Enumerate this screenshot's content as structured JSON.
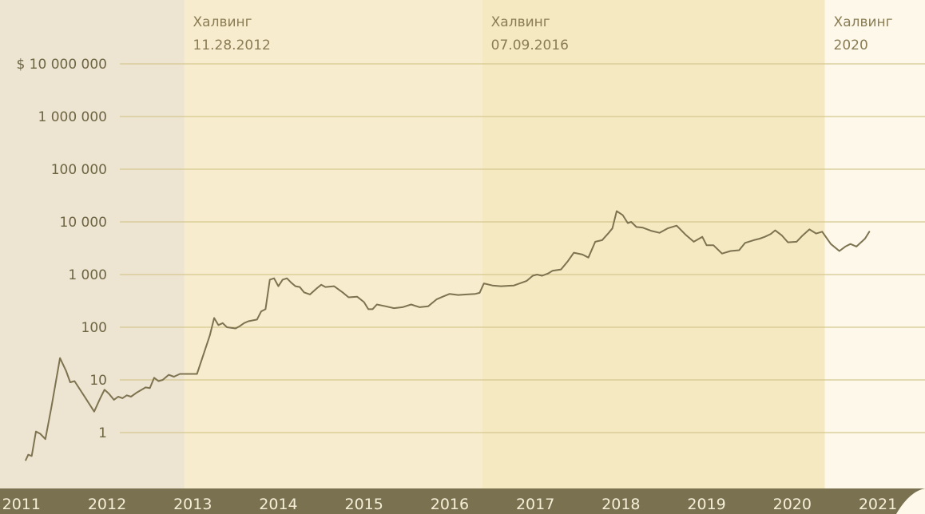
{
  "chart_data": {
    "type": "line",
    "y_scale": "log",
    "ylim": [
      0.2,
      10000000
    ],
    "xlim": [
      2010.75,
      2021.55
    ],
    "grid": "horizontal",
    "y_ticks": [
      {
        "value": 10000000,
        "label": "$ 10 000 000"
      },
      {
        "value": 1000000,
        "label": "1 000 000"
      },
      {
        "value": 100000,
        "label": "100 000"
      },
      {
        "value": 10000,
        "label": "10 000"
      },
      {
        "value": 1000,
        "label": "1 000"
      },
      {
        "value": 100,
        "label": "100"
      },
      {
        "value": 10,
        "label": "10"
      },
      {
        "value": 1,
        "label": "1"
      }
    ],
    "x_ticks": [
      {
        "value": 2011,
        "label": "2011"
      },
      {
        "value": 2012,
        "label": "2012"
      },
      {
        "value": 2013,
        "label": "2013"
      },
      {
        "value": 2014,
        "label": "2014"
      },
      {
        "value": 2015,
        "label": "2015"
      },
      {
        "value": 2016,
        "label": "2016"
      },
      {
        "value": 2017,
        "label": "2017"
      },
      {
        "value": 2018,
        "label": "2018"
      },
      {
        "value": 2019,
        "label": "2019"
      },
      {
        "value": 2020,
        "label": "2020"
      },
      {
        "value": 2021,
        "label": "2021"
      }
    ],
    "regions": [
      {
        "from": 2010.75,
        "to": 2012.9,
        "color": "#ede4d2"
      },
      {
        "from": 2012.9,
        "to": 2016.38,
        "color": "#f8ecce"
      },
      {
        "from": 2016.38,
        "to": 2020.38,
        "color": "#f5e9c1"
      },
      {
        "from": 2020.38,
        "to": 2021.55,
        "color": "#fdf8ea"
      }
    ],
    "annotations": [
      {
        "x": 2012.9,
        "lines": [
          "Халвинг",
          "11.28.2012"
        ]
      },
      {
        "x": 2016.38,
        "lines": [
          "Халвинг",
          "07.09.2016"
        ]
      },
      {
        "x": 2020.38,
        "lines": [
          "Халвинг",
          "2020"
        ]
      }
    ],
    "colors": {
      "line": "#7d7350",
      "axis_band": "#7a7150",
      "grid": "#d6c88f"
    },
    "series": [
      {
        "points": [
          [
            2011.05,
            0.3
          ],
          [
            2011.08,
            0.38
          ],
          [
            2011.12,
            0.36
          ],
          [
            2011.17,
            1.05
          ],
          [
            2011.22,
            0.95
          ],
          [
            2011.28,
            0.75
          ],
          [
            2011.35,
            3.0
          ],
          [
            2011.45,
            26
          ],
          [
            2011.52,
            15
          ],
          [
            2011.57,
            9
          ],
          [
            2011.62,
            9.5
          ],
          [
            2011.75,
            4.5
          ],
          [
            2011.85,
            2.5
          ],
          [
            2011.92,
            4.5
          ],
          [
            2011.97,
            6.5
          ],
          [
            2012.02,
            5.5
          ],
          [
            2012.08,
            4.2
          ],
          [
            2012.13,
            4.8
          ],
          [
            2012.18,
            4.5
          ],
          [
            2012.23,
            5.1
          ],
          [
            2012.28,
            4.8
          ],
          [
            2012.35,
            5.8
          ],
          [
            2012.45,
            7.2
          ],
          [
            2012.5,
            7.0
          ],
          [
            2012.55,
            11
          ],
          [
            2012.6,
            9.5
          ],
          [
            2012.65,
            10
          ],
          [
            2012.72,
            12.5
          ],
          [
            2012.78,
            11.5
          ],
          [
            2012.85,
            13
          ],
          [
            2013.05,
            13
          ],
          [
            2013.2,
            70
          ],
          [
            2013.25,
            150
          ],
          [
            2013.3,
            110
          ],
          [
            2013.35,
            120
          ],
          [
            2013.4,
            100
          ],
          [
            2013.5,
            95
          ],
          [
            2013.55,
            105
          ],
          [
            2013.6,
            120
          ],
          [
            2013.65,
            130
          ],
          [
            2013.75,
            140
          ],
          [
            2013.8,
            200
          ],
          [
            2013.85,
            220
          ],
          [
            2013.9,
            800
          ],
          [
            2013.95,
            850
          ],
          [
            2014.0,
            600
          ],
          [
            2014.05,
            800
          ],
          [
            2014.1,
            850
          ],
          [
            2014.15,
            700
          ],
          [
            2014.2,
            600
          ],
          [
            2014.25,
            580
          ],
          [
            2014.3,
            460
          ],
          [
            2014.37,
            420
          ],
          [
            2014.45,
            550
          ],
          [
            2014.5,
            640
          ],
          [
            2014.55,
            580
          ],
          [
            2014.65,
            600
          ],
          [
            2014.75,
            460
          ],
          [
            2014.82,
            370
          ],
          [
            2014.92,
            380
          ],
          [
            2015.0,
            300
          ],
          [
            2015.05,
            220
          ],
          [
            2015.1,
            220
          ],
          [
            2015.15,
            270
          ],
          [
            2015.25,
            250
          ],
          [
            2015.35,
            230
          ],
          [
            2015.45,
            240
          ],
          [
            2015.55,
            270
          ],
          [
            2015.65,
            240
          ],
          [
            2015.75,
            250
          ],
          [
            2015.85,
            340
          ],
          [
            2015.92,
            380
          ],
          [
            2016.0,
            430
          ],
          [
            2016.1,
            410
          ],
          [
            2016.2,
            420
          ],
          [
            2016.3,
            430
          ],
          [
            2016.35,
            450
          ],
          [
            2016.4,
            680
          ],
          [
            2016.5,
            620
          ],
          [
            2016.6,
            600
          ],
          [
            2016.75,
            620
          ],
          [
            2016.9,
            760
          ],
          [
            2016.97,
            950
          ],
          [
            2017.02,
            1000
          ],
          [
            2017.08,
            950
          ],
          [
            2017.15,
            1050
          ],
          [
            2017.2,
            1180
          ],
          [
            2017.3,
            1250
          ],
          [
            2017.38,
            1800
          ],
          [
            2017.45,
            2600
          ],
          [
            2017.55,
            2400
          ],
          [
            2017.62,
            2100
          ],
          [
            2017.7,
            4200
          ],
          [
            2017.78,
            4500
          ],
          [
            2017.85,
            6000
          ],
          [
            2017.9,
            7500
          ],
          [
            2017.95,
            16000
          ],
          [
            2018.02,
            13500
          ],
          [
            2018.08,
            9500
          ],
          [
            2018.12,
            10000
          ],
          [
            2018.18,
            8000
          ],
          [
            2018.25,
            7800
          ],
          [
            2018.35,
            6800
          ],
          [
            2018.45,
            6200
          ],
          [
            2018.55,
            7600
          ],
          [
            2018.65,
            8500
          ],
          [
            2018.75,
            5800
          ],
          [
            2018.85,
            4200
          ],
          [
            2018.95,
            5200
          ],
          [
            2019.0,
            3600
          ],
          [
            2019.08,
            3600
          ],
          [
            2019.18,
            2500
          ],
          [
            2019.28,
            2800
          ],
          [
            2019.38,
            2900
          ],
          [
            2019.45,
            4000
          ],
          [
            2019.55,
            4500
          ],
          [
            2019.62,
            4800
          ],
          [
            2019.68,
            5200
          ],
          [
            2019.75,
            5900
          ],
          [
            2019.8,
            6900
          ],
          [
            2019.88,
            5500
          ],
          [
            2019.95,
            4100
          ],
          [
            2020.05,
            4200
          ],
          [
            2020.12,
            5500
          ],
          [
            2020.2,
            7200
          ],
          [
            2020.28,
            6000
          ],
          [
            2020.35,
            6500
          ],
          [
            2020.45,
            3800
          ],
          [
            2020.55,
            2800
          ],
          [
            2020.62,
            3400
          ],
          [
            2020.68,
            3800
          ],
          [
            2020.75,
            3400
          ],
          [
            2020.85,
            4800
          ],
          [
            2020.9,
            6500
          ]
        ]
      }
    ]
  }
}
